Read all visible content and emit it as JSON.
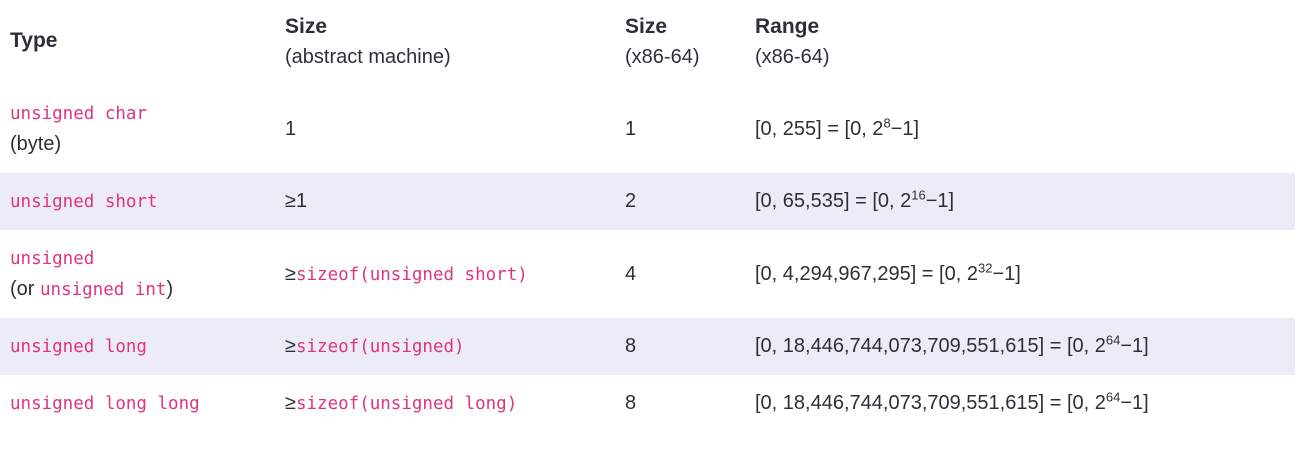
{
  "colors": {
    "code_pink": "#e0347e",
    "stripe_bg": "#ececf8",
    "text_dark": "#2c3036"
  },
  "table": {
    "headers": [
      {
        "title": "Type",
        "subtitle": ""
      },
      {
        "title": "Size",
        "subtitle": "(abstract machine)"
      },
      {
        "title": "Size",
        "subtitle": "(x86-64)"
      },
      {
        "title": "Range",
        "subtitle": "(x86-64)"
      }
    ],
    "rows": [
      {
        "type_line1_code": "unsigned char",
        "type_line2_pre": "(byte)",
        "type_line2_code": "",
        "type_line2_post": "",
        "size_abstract_pre": "1",
        "size_abstract_code": "",
        "size_x86": "1",
        "range_pre": "[0, 255] = [0, 2",
        "range_sup": "8",
        "range_post": "−1]"
      },
      {
        "type_line1_code": "unsigned short",
        "type_line2_pre": "",
        "type_line2_code": "",
        "type_line2_post": "",
        "size_abstract_pre": "≥1",
        "size_abstract_code": "",
        "size_x86": "2",
        "range_pre": "[0, 65,535] = [0, 2",
        "range_sup": "16",
        "range_post": "−1]"
      },
      {
        "type_line1_code": "unsigned",
        "type_line2_pre": "(or ",
        "type_line2_code": "unsigned int",
        "type_line2_post": ")",
        "size_abstract_pre": "≥",
        "size_abstract_code": "sizeof(unsigned short)",
        "size_x86": "4",
        "range_pre": "[0, 4,294,967,295] = [0, 2",
        "range_sup": "32",
        "range_post": "−1]"
      },
      {
        "type_line1_code": "unsigned long",
        "type_line2_pre": "",
        "type_line2_code": "",
        "type_line2_post": "",
        "size_abstract_pre": "≥",
        "size_abstract_code": "sizeof(unsigned)",
        "size_x86": "8",
        "range_pre": "[0, 18,446,744,073,709,551,615] = [0, 2",
        "range_sup": "64",
        "range_post": "−1]"
      },
      {
        "type_line1_code": "unsigned long long",
        "type_line2_pre": "",
        "type_line2_code": "",
        "type_line2_post": "",
        "size_abstract_pre": "≥",
        "size_abstract_code": "sizeof(unsigned long)",
        "size_x86": "8",
        "range_pre": "[0, 18,446,744,073,709,551,615] = [0, 2",
        "range_sup": "64",
        "range_post": "−1]"
      }
    ]
  }
}
